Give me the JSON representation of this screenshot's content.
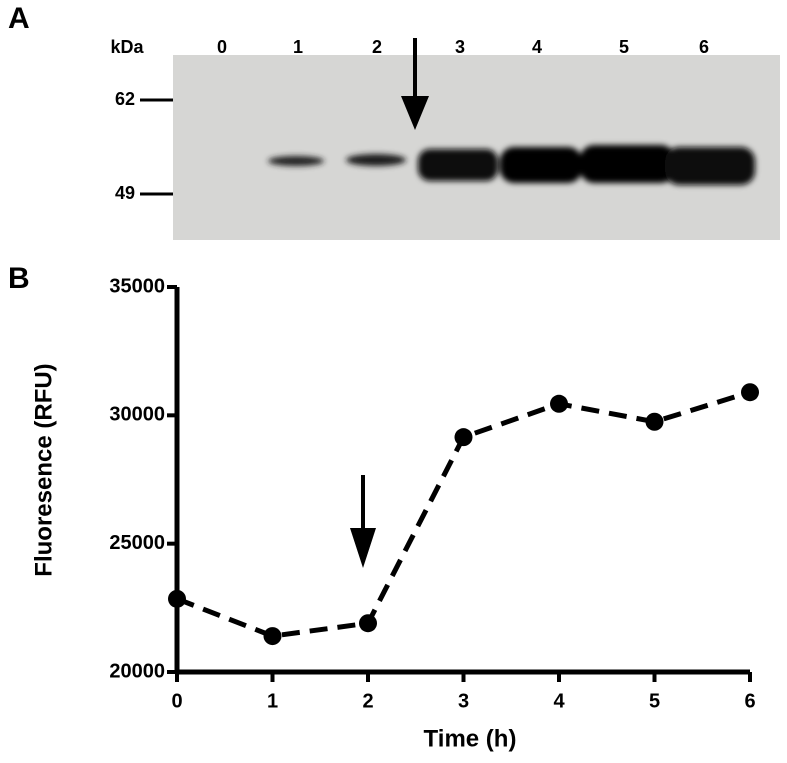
{
  "panel_a": {
    "label": "A",
    "unit": "kDa",
    "lanes": [
      "0",
      "1",
      "2",
      "3",
      "4",
      "5",
      "6"
    ],
    "markers": [
      62,
      49
    ]
  },
  "chart_data": {
    "type": "line",
    "panel_label": "B",
    "x_label": "Time (h)",
    "y_label": "Fluoresence (RFU)",
    "x": [
      0,
      1,
      2,
      3,
      4,
      5,
      6
    ],
    "values": [
      22850,
      21400,
      21900,
      29150,
      30450,
      29750,
      30900
    ],
    "color": "#000000",
    "xlim": [
      0,
      6
    ],
    "xticks": [
      0,
      1,
      2,
      3,
      4,
      5,
      6
    ],
    "ylim": [
      20000,
      35000
    ],
    "yticks": [
      20000,
      25000,
      30000,
      35000
    ]
  }
}
